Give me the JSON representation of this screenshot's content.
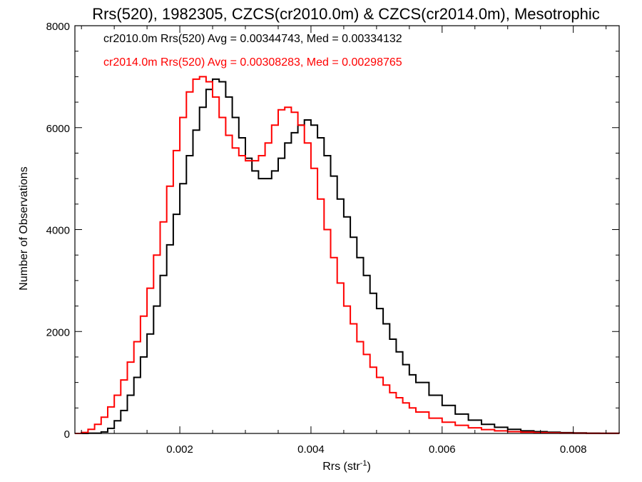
{
  "chart_data": {
    "type": "line",
    "title": "Rrs(520), 1982305, CZCS(cr2010.0m) & CZCS(cr2014.0m), Mesotrophic",
    "xlabel": {
      "base": "Rrs (str",
      "sup": "-1",
      "close": ")"
    },
    "ylabel": "Number of Observations",
    "xlim": [
      0.0004,
      0.0087
    ],
    "ylim": [
      0,
      8000
    ],
    "xticks": [
      {
        "value": 0.002,
        "label": "0.002"
      },
      {
        "value": 0.004,
        "label": "0.004"
      },
      {
        "value": 0.006,
        "label": "0.006"
      },
      {
        "value": 0.008,
        "label": "0.008"
      }
    ],
    "yticks": [
      {
        "value": 0,
        "label": "0"
      },
      {
        "value": 2000,
        "label": "2000"
      },
      {
        "value": 4000,
        "label": "4000"
      },
      {
        "value": 6000,
        "label": "6000"
      },
      {
        "value": 8000,
        "label": "8000"
      }
    ],
    "grid": false,
    "legend": "top-left",
    "step": true,
    "series": [
      {
        "name": "cr2010.0m Rrs(520) Avg = 0.00344743, Med = 0.00334132",
        "color": "#000000",
        "x": [
          0.0004,
          0.0006,
          0.0008,
          0.0009,
          0.001,
          0.0011,
          0.0012,
          0.0013,
          0.0014,
          0.0015,
          0.0016,
          0.0017,
          0.0018,
          0.0019,
          0.002,
          0.0021,
          0.0022,
          0.0023,
          0.0024,
          0.0025,
          0.0026,
          0.0027,
          0.0028,
          0.0029,
          0.003,
          0.0031,
          0.0032,
          0.0033,
          0.0034,
          0.0035,
          0.0036,
          0.0037,
          0.0038,
          0.0039,
          0.004,
          0.0041,
          0.0042,
          0.0043,
          0.0044,
          0.0045,
          0.0046,
          0.0047,
          0.0048,
          0.0049,
          0.005,
          0.0051,
          0.0052,
          0.0053,
          0.0054,
          0.0055,
          0.0056,
          0.0058,
          0.006,
          0.0062,
          0.0064,
          0.0066,
          0.0068,
          0.007,
          0.0072,
          0.0074,
          0.0076,
          0.0078,
          0.008,
          0.0082,
          0.0084,
          0.0087
        ],
        "y": [
          0,
          5,
          30,
          100,
          250,
          450,
          750,
          1100,
          1500,
          1950,
          2500,
          3100,
          3700,
          4300,
          4900,
          5450,
          5950,
          6400,
          6750,
          6950,
          6900,
          6600,
          6200,
          5800,
          5400,
          5150,
          5000,
          5000,
          5150,
          5400,
          5700,
          5900,
          6050,
          6150,
          6050,
          5800,
          5450,
          5050,
          4600,
          4250,
          3850,
          3450,
          3100,
          2750,
          2450,
          2150,
          1850,
          1600,
          1350,
          1150,
          1000,
          750,
          550,
          380,
          260,
          180,
          120,
          80,
          50,
          35,
          25,
          15,
          10,
          5,
          3,
          0
        ]
      },
      {
        "name": "cr2014.0m Rrs(520) Avg = 0.00308283, Med = 0.00298765",
        "color": "#ff0000",
        "x": [
          0.0004,
          0.0005,
          0.0006,
          0.0007,
          0.0008,
          0.0009,
          0.001,
          0.0011,
          0.0012,
          0.0013,
          0.0014,
          0.0015,
          0.0016,
          0.0017,
          0.0018,
          0.0019,
          0.002,
          0.0021,
          0.0022,
          0.0023,
          0.0024,
          0.0025,
          0.0026,
          0.0027,
          0.0028,
          0.0029,
          0.003,
          0.0031,
          0.0032,
          0.0033,
          0.0034,
          0.0035,
          0.0036,
          0.0037,
          0.0038,
          0.0039,
          0.004,
          0.0041,
          0.0042,
          0.0043,
          0.0044,
          0.0045,
          0.0046,
          0.0047,
          0.0048,
          0.0049,
          0.005,
          0.0051,
          0.0052,
          0.0053,
          0.0054,
          0.0055,
          0.0056,
          0.0058,
          0.006,
          0.0062,
          0.0064,
          0.0066,
          0.0068,
          0.007,
          0.0072,
          0.0074,
          0.0076,
          0.0078,
          0.008,
          0.0082,
          0.0084,
          0.0087
        ],
        "y": [
          0,
          20,
          80,
          180,
          320,
          520,
          750,
          1050,
          1400,
          1800,
          2300,
          2850,
          3500,
          4150,
          4850,
          5550,
          6200,
          6700,
          6950,
          7000,
          6900,
          6600,
          6200,
          5850,
          5600,
          5450,
          5350,
          5350,
          5450,
          5700,
          6050,
          6350,
          6400,
          6300,
          6050,
          5700,
          5200,
          4600,
          4000,
          3450,
          2950,
          2500,
          2150,
          1800,
          1550,
          1300,
          1100,
          950,
          800,
          700,
          600,
          500,
          420,
          300,
          220,
          160,
          110,
          75,
          50,
          35,
          25,
          15,
          10,
          6,
          4,
          2,
          1,
          0
        ]
      }
    ]
  }
}
